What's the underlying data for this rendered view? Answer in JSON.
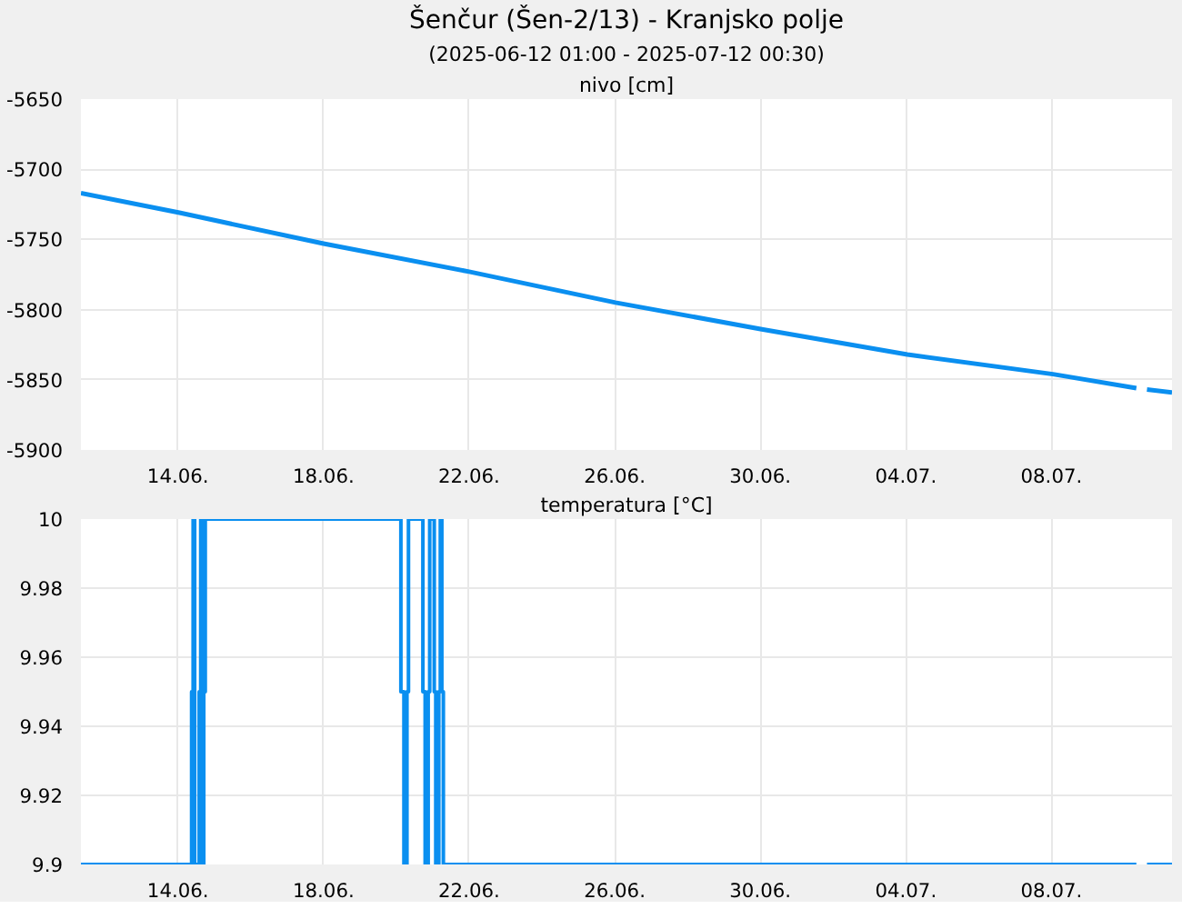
{
  "chart_data": [
    {
      "type": "line",
      "title": "Šenčur (Šen-2/13) - Kranjsko polje",
      "subtitle": "(2025-06-12 01:00 - 2025-07-12 00:30)",
      "ylabel": "nivo [cm]",
      "x": [
        "2025-06-12T01:00",
        "2025-06-14T18:00",
        "2025-06-18T17:00",
        "2025-06-22T17:00",
        "2025-06-26T17:30",
        "2025-06-30T18:00",
        "2025-07-04T18:00",
        "2025-07-08T18:00",
        "2025-07-11T01:00",
        "2025-07-11T04:00",
        "2025-07-11T08:00",
        "2025-07-12T00:30"
      ],
      "series": [
        {
          "color": "#0a8ff0",
          "values": [
            -5717,
            -5731,
            -5753,
            -5773,
            -5795,
            -5814,
            -5832,
            -5846,
            -5856,
            null,
            -5857,
            -5859
          ]
        }
      ],
      "xlim": [
        "2025-06-12T01:00",
        "2025-07-12T00:30"
      ],
      "xticks": [
        {
          "value": "2025-06-14T17:00",
          "label": "14.06."
        },
        {
          "value": "2025-06-18T17:00",
          "label": "18.06."
        },
        {
          "value": "2025-06-22T17:00",
          "label": "22.06."
        },
        {
          "value": "2025-06-26T17:00",
          "label": "26.06."
        },
        {
          "value": "2025-06-30T17:00",
          "label": "30.06."
        },
        {
          "value": "2025-07-04T17:00",
          "label": "04.07."
        },
        {
          "value": "2025-07-08T17:00",
          "label": "08.07."
        }
      ],
      "ylim": [
        -5900,
        -5650
      ],
      "yticks": [
        -5900,
        -5850,
        -5800,
        -5750,
        -5700,
        -5650
      ],
      "grid": true,
      "line_style": "solid"
    },
    {
      "type": "step",
      "ylabel": "temperatura [°C]",
      "x": [
        "2025-06-12T01:00",
        "2025-06-15T02:00",
        "2025-06-15T03:00",
        "2025-06-15T04:00",
        "2025-06-15T07:00",
        "2025-06-15T08:00",
        "2025-06-15T09:00",
        "2025-06-15T10:00",
        "2025-06-15T11:00",
        "2025-06-20T20:00",
        "2025-06-20T22:00",
        "2025-06-21T00:00",
        "2025-06-21T01:00",
        "2025-06-21T10:30",
        "2025-06-21T12:00",
        "2025-06-21T14:00",
        "2025-06-21T15:00",
        "2025-06-21T18:00",
        "2025-06-21T19:00",
        "2025-06-21T21:00",
        "2025-06-21T22:00",
        "2025-06-21T23:00",
        "2025-06-22T00:00",
        "2025-07-11T01:00",
        "2025-07-11T04:00",
        "2025-07-11T08:00",
        "2025-07-12T00:30"
      ],
      "series": [
        {
          "color": "#0a8ff0",
          "values": [
            9.9,
            9.95,
            10,
            9.9,
            9.95,
            10,
            9.9,
            9.95,
            10,
            9.95,
            9.9,
            9.95,
            10,
            9.95,
            9.9,
            9.95,
            10,
            9.95,
            9.9,
            9.95,
            10,
            9.95,
            9.9,
            9.9,
            null,
            9.9,
            9.9
          ]
        }
      ],
      "xlim": [
        "2025-06-12T01:00",
        "2025-07-12T00:30"
      ],
      "xticks": [
        {
          "value": "2025-06-14T17:00",
          "label": "14.06."
        },
        {
          "value": "2025-06-18T17:00",
          "label": "18.06."
        },
        {
          "value": "2025-06-22T17:00",
          "label": "22.06."
        },
        {
          "value": "2025-06-26T17:00",
          "label": "26.06."
        },
        {
          "value": "2025-06-30T17:00",
          "label": "30.06."
        },
        {
          "value": "2025-07-04T17:00",
          "label": "04.07."
        },
        {
          "value": "2025-07-08T17:00",
          "label": "08.07."
        }
      ],
      "ylim": [
        9.9,
        10
      ],
      "yticks": [
        9.9,
        9.92,
        9.94,
        9.96,
        9.98,
        10
      ],
      "grid": true,
      "line_style": "solid"
    }
  ]
}
